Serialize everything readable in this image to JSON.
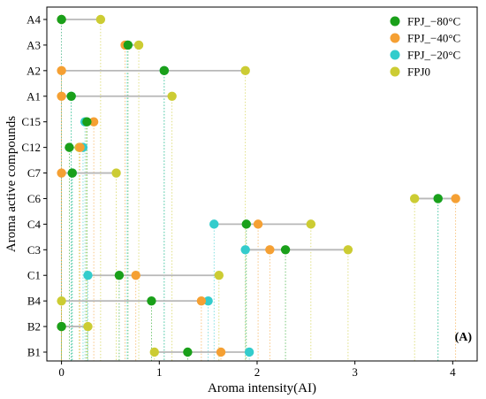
{
  "chart_data": {
    "type": "dumbbell",
    "xlabel": "Aroma intensity(AI)",
    "ylabel": "Aroma active compounds",
    "panel_label": "(A)",
    "xlim": [
      -0.15,
      4.25
    ],
    "xticks": [
      0,
      1,
      2,
      3,
      4
    ],
    "legend_position": "top-right",
    "grid": false,
    "categories": [
      "A4",
      "A3",
      "A2",
      "A1",
      "C15",
      "C12",
      "C7",
      "C6",
      "C4",
      "C3",
      "C1",
      "B4",
      "B2",
      "B1"
    ],
    "series": [
      {
        "name": "FPJ_−80°C",
        "color": "#1aa01a",
        "values": [
          0.0,
          0.68,
          1.05,
          0.1,
          0.26,
          0.08,
          0.11,
          3.85,
          1.89,
          2.29,
          0.59,
          0.92,
          0.0,
          1.29
        ]
      },
      {
        "name": "FPJ_−40°C",
        "color": "#f5a033",
        "values": [
          0.0,
          0.65,
          0.0,
          0.0,
          0.33,
          0.19,
          0.0,
          4.03,
          2.01,
          2.13,
          0.76,
          1.43,
          0.0,
          1.63
        ]
      },
      {
        "name": "FPJ_−20°C",
        "color": "#33cccc",
        "values": [
          0.0,
          0.67,
          1.05,
          0.1,
          0.24,
          0.22,
          0.11,
          3.85,
          1.56,
          1.88,
          0.27,
          1.5,
          0.0,
          1.92
        ]
      },
      {
        "name": "FPJ0",
        "color": "#cccc33",
        "values": [
          0.4,
          0.79,
          1.88,
          1.13,
          0.25,
          0.18,
          0.56,
          3.61,
          2.55,
          2.93,
          1.61,
          0.0,
          0.27,
          0.95
        ]
      }
    ]
  }
}
